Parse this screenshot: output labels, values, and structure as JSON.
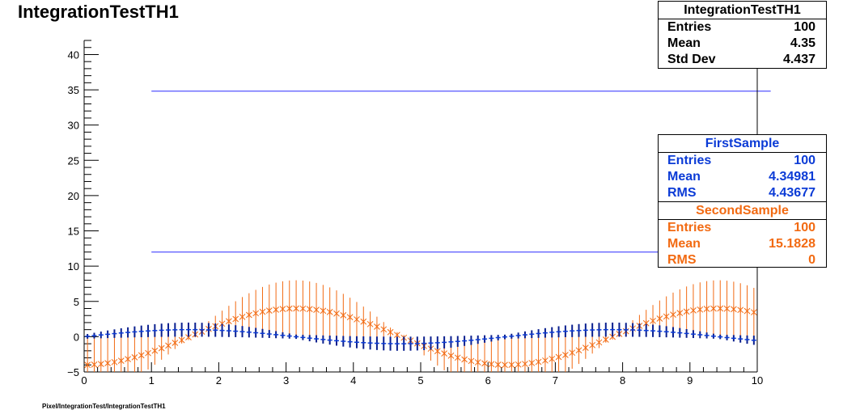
{
  "title": "IntegrationTestTH1",
  "footer": "Pixel/IntegrationTest/IntegrationTestTH1",
  "stats_main": {
    "title": "IntegrationTestTH1",
    "rows": [
      {
        "label": "Entries",
        "value": "100"
      },
      {
        "label": "Mean",
        "value": "4.35"
      },
      {
        "label": "Std Dev",
        "value": "4.437"
      }
    ]
  },
  "stats_first": {
    "title": "FirstSample",
    "rows": [
      {
        "label": "Entries",
        "value": "100"
      },
      {
        "label": "Mean",
        "value": "4.34981"
      },
      {
        "label": "RMS",
        "value": "4.43677"
      }
    ]
  },
  "stats_second": {
    "title": "SecondSample",
    "rows": [
      {
        "label": "Entries",
        "value": "100"
      },
      {
        "label": "Mean",
        "value": "15.1828"
      },
      {
        "label": "RMS",
        "value": "0"
      }
    ]
  },
  "colors": {
    "first": "#0b3bd6",
    "second": "#f26a12",
    "hline": "#2a2aff",
    "first_err": "#0a1f8f"
  },
  "chart_data": {
    "type": "scatter",
    "title": "IntegrationTestTH1",
    "xlabel": "",
    "ylabel": "",
    "xlim": [
      0,
      10
    ],
    "ylim": [
      -5,
      42
    ],
    "x_ticks": [
      0,
      1,
      2,
      3,
      4,
      5,
      6,
      7,
      8,
      9,
      10
    ],
    "y_ticks": [
      -5,
      0,
      5,
      10,
      15,
      20,
      25,
      30,
      35,
      40
    ],
    "grid": false,
    "legend": "top-right",
    "hlines": [
      {
        "y": 34.8,
        "x_from": 1,
        "x_to": 10.2
      },
      {
        "y": 12.0,
        "x_from": 1,
        "x_to": 10.2
      }
    ],
    "series": [
      {
        "name": "FirstSample",
        "n": 100,
        "function": "1.0*sin(x)",
        "error": "0.3 + 0.7*|sin(x)|",
        "marker": "plus"
      },
      {
        "name": "SecondSample",
        "n": 100,
        "function": "-4.0*cos(x)",
        "error": "|4.0*cos(x)|",
        "marker": "star"
      }
    ]
  }
}
